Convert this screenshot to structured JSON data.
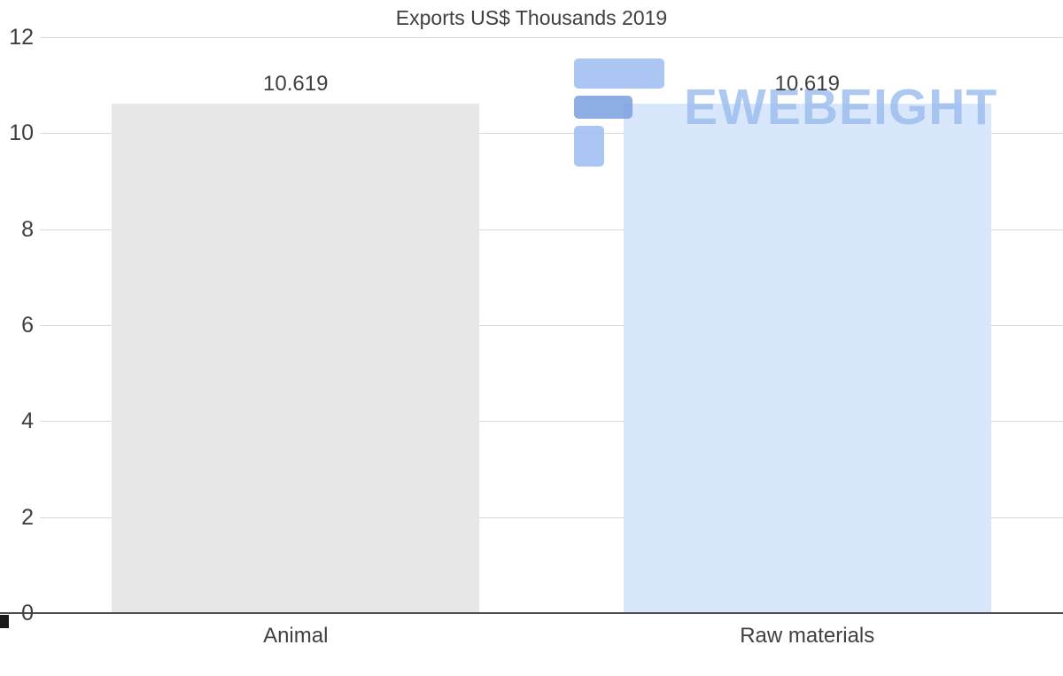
{
  "chart_data": {
    "type": "bar",
    "title": "Exports US$ Thousands 2019",
    "categories": [
      "Animal",
      "Raw materials"
    ],
    "values": [
      10.619,
      10.619
    ],
    "data_labels": [
      "10.619",
      "10.619"
    ],
    "bar_colors": [
      "#e7e7e7",
      "#d8e7fb"
    ],
    "xlabel": "",
    "ylabel": "",
    "ylim": [
      0,
      12
    ],
    "yticks": [
      0,
      2,
      4,
      6,
      8,
      10,
      12
    ],
    "grid": true,
    "legend": "none",
    "grid_color": "#d9d9d9",
    "text_color": "#404040"
  },
  "watermark": {
    "text": "EWEBEIGHT",
    "color": "#9fbfef"
  }
}
